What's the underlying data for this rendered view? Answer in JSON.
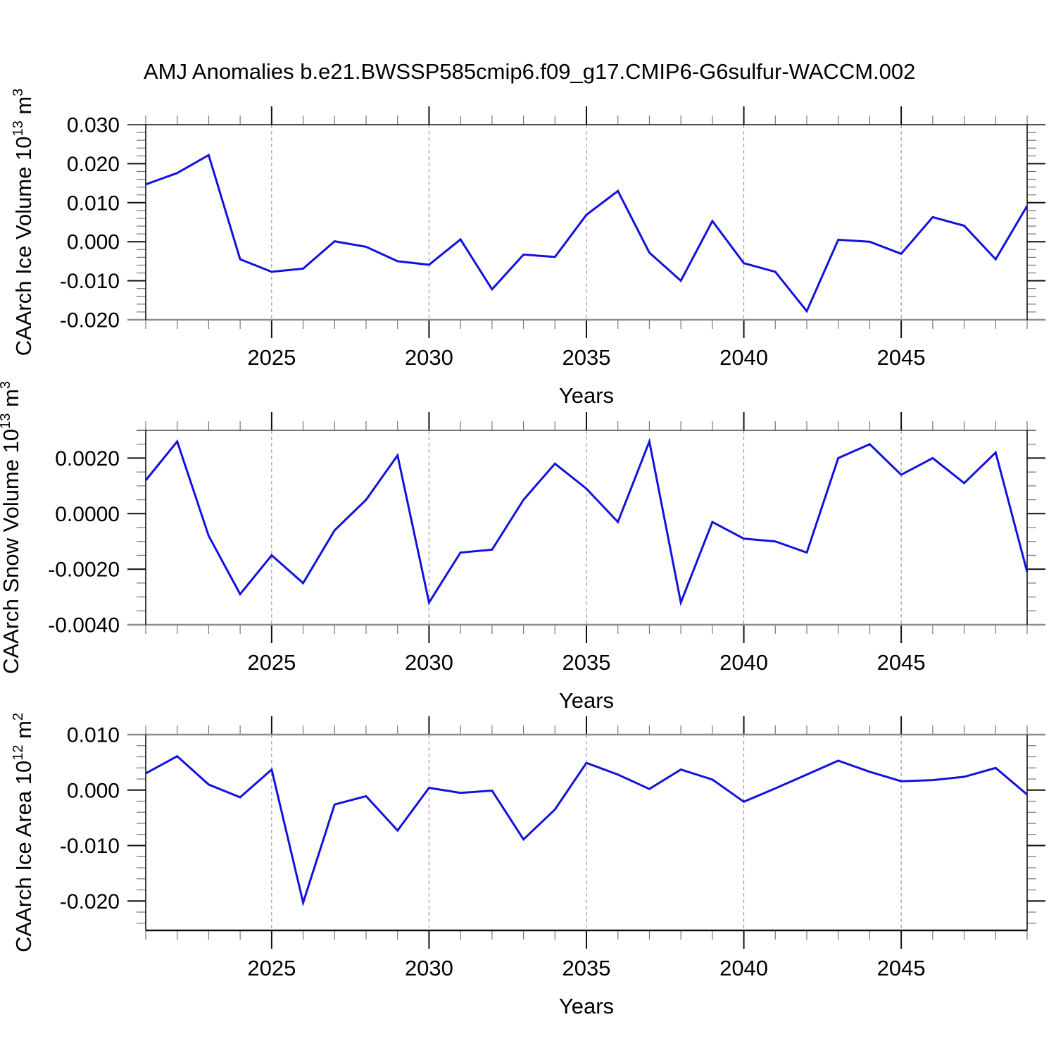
{
  "title": "AMJ Anomalies b.e21.BWSSP585cmip6.f09_g17.CMIP6-G6sulfur-WACCM.002",
  "style": {
    "line_color": "#1212dd",
    "grid_color": "#888888",
    "axis_color": "#111111",
    "thick_border_gray": "#8c8c8c",
    "minor_tick_color": "#777777",
    "text_color": "#000000"
  },
  "chart_data": [
    {
      "type": "line",
      "panel": "ice-volume",
      "ylabel_parts": [
        {
          "text": "CAArch Ice Volume 10"
        },
        {
          "sup": "13"
        },
        {
          "text": " m"
        },
        {
          "sup": "3"
        }
      ],
      "xlabel": "Years",
      "x": [
        2021,
        2022,
        2023,
        2024,
        2025,
        2026,
        2027,
        2028,
        2029,
        2030,
        2031,
        2032,
        2033,
        2034,
        2035,
        2036,
        2037,
        2038,
        2039,
        2040,
        2041,
        2042,
        2043,
        2044,
        2045,
        2046,
        2047,
        2048,
        2049
      ],
      "values": [
        0.0147,
        0.0176,
        0.0222,
        -0.0045,
        -0.0077,
        -0.0069,
        0.0001,
        -0.0013,
        -0.005,
        -0.0059,
        0.0006,
        -0.0122,
        -0.0033,
        -0.0039,
        0.0069,
        0.013,
        -0.0028,
        -0.01,
        0.0053,
        -0.0055,
        -0.0077,
        -0.0178,
        0.0005,
        0.0,
        -0.0031,
        0.0063,
        0.0041,
        -0.0045,
        0.0092
      ],
      "xlim": [
        2021,
        2049
      ],
      "ylim": [
        -0.02,
        0.03
      ],
      "xtick_major": [
        2025,
        2030,
        2035,
        2040,
        2045
      ],
      "xtick_labels": [
        "2025",
        "2030",
        "2035",
        "2040",
        "2045"
      ],
      "xminor_step": 1,
      "ytick_values": [
        0.03,
        0.02,
        0.01,
        0.0,
        -0.01,
        -0.02
      ],
      "ytick_labels": [
        "0.030",
        "0.020",
        "0.010",
        "0.000",
        "-0.010",
        "-0.020"
      ],
      "yminor_step": 0.002,
      "grid": "vertical-dashed-at-major",
      "legend": "none"
    },
    {
      "type": "line",
      "panel": "snow-volume",
      "ylabel_parts": [
        {
          "text": "CAArch Snow Volume 10"
        },
        {
          "sup": "13"
        },
        {
          "text": " m"
        },
        {
          "sup": "3"
        }
      ],
      "xlabel": "Years",
      "x": [
        2021,
        2022,
        2023,
        2024,
        2025,
        2026,
        2027,
        2028,
        2029,
        2030,
        2031,
        2032,
        2033,
        2034,
        2035,
        2036,
        2037,
        2038,
        2039,
        2040,
        2041,
        2042,
        2043,
        2044,
        2045,
        2046,
        2047,
        2048,
        2049
      ],
      "values": [
        0.0012,
        0.0026,
        -0.0008,
        -0.0029,
        -0.0015,
        -0.0025,
        -0.0006,
        0.0005,
        0.0021,
        -0.0032,
        -0.0014,
        -0.0013,
        0.0005,
        0.0018,
        0.0009,
        -0.0003,
        0.0026,
        -0.0032,
        -0.0003,
        -0.0009,
        -0.001,
        -0.0014,
        0.002,
        0.0025,
        0.0014,
        0.002,
        0.0011,
        0.0022,
        -0.0021
      ],
      "xlim": [
        2021,
        2049
      ],
      "ylim": [
        -0.004,
        0.003
      ],
      "xtick_major": [
        2025,
        2030,
        2035,
        2040,
        2045
      ],
      "xtick_labels": [
        "2025",
        "2030",
        "2035",
        "2040",
        "2045"
      ],
      "xminor_step": 1,
      "ytick_values": [
        0.002,
        0.0,
        -0.002,
        -0.004
      ],
      "ytick_labels": [
        "0.0020",
        "0.0000",
        "-0.0020",
        "-0.0040"
      ],
      "yminor_step": 0.0005,
      "grid": "vertical-dashed-at-major",
      "legend": "none"
    },
    {
      "type": "line",
      "panel": "ice-area",
      "ylabel_parts": [
        {
          "text": "CAArch Ice Area 10"
        },
        {
          "sup": "12"
        },
        {
          "text": " m"
        },
        {
          "sup": "2"
        }
      ],
      "xlabel": "Years",
      "x": [
        2021,
        2022,
        2023,
        2024,
        2025,
        2026,
        2027,
        2028,
        2029,
        2030,
        2031,
        2032,
        2033,
        2034,
        2035,
        2036,
        2037,
        2038,
        2039,
        2040,
        2041,
        2042,
        2043,
        2044,
        2045,
        2046,
        2047,
        2048,
        2049
      ],
      "values": [
        0.003,
        0.0061,
        0.001,
        -0.0013,
        0.0037,
        -0.0203,
        -0.0026,
        -0.0011,
        -0.0073,
        0.0004,
        -0.0005,
        -0.0001,
        -0.0089,
        -0.0035,
        0.0049,
        0.0028,
        0.0002,
        0.0037,
        0.0019,
        -0.0021,
        0.0003,
        0.0028,
        0.0053,
        0.0033,
        0.0016,
        0.0018,
        0.0024,
        0.004,
        -0.0008
      ],
      "xlim": [
        2021,
        2049
      ],
      "ylim": [
        -0.0253,
        0.01
      ],
      "xtick_major": [
        2025,
        2030,
        2035,
        2040,
        2045
      ],
      "xtick_labels": [
        "2025",
        "2030",
        "2035",
        "2040",
        "2045"
      ],
      "xminor_step": 1,
      "ytick_values": [
        0.01,
        0.0,
        -0.01,
        -0.02
      ],
      "ytick_labels": [
        "0.010",
        "0.000",
        "-0.010",
        "-0.020"
      ],
      "yminor_step": 0.002,
      "grid": "vertical-dashed-at-major",
      "legend": "none"
    }
  ]
}
